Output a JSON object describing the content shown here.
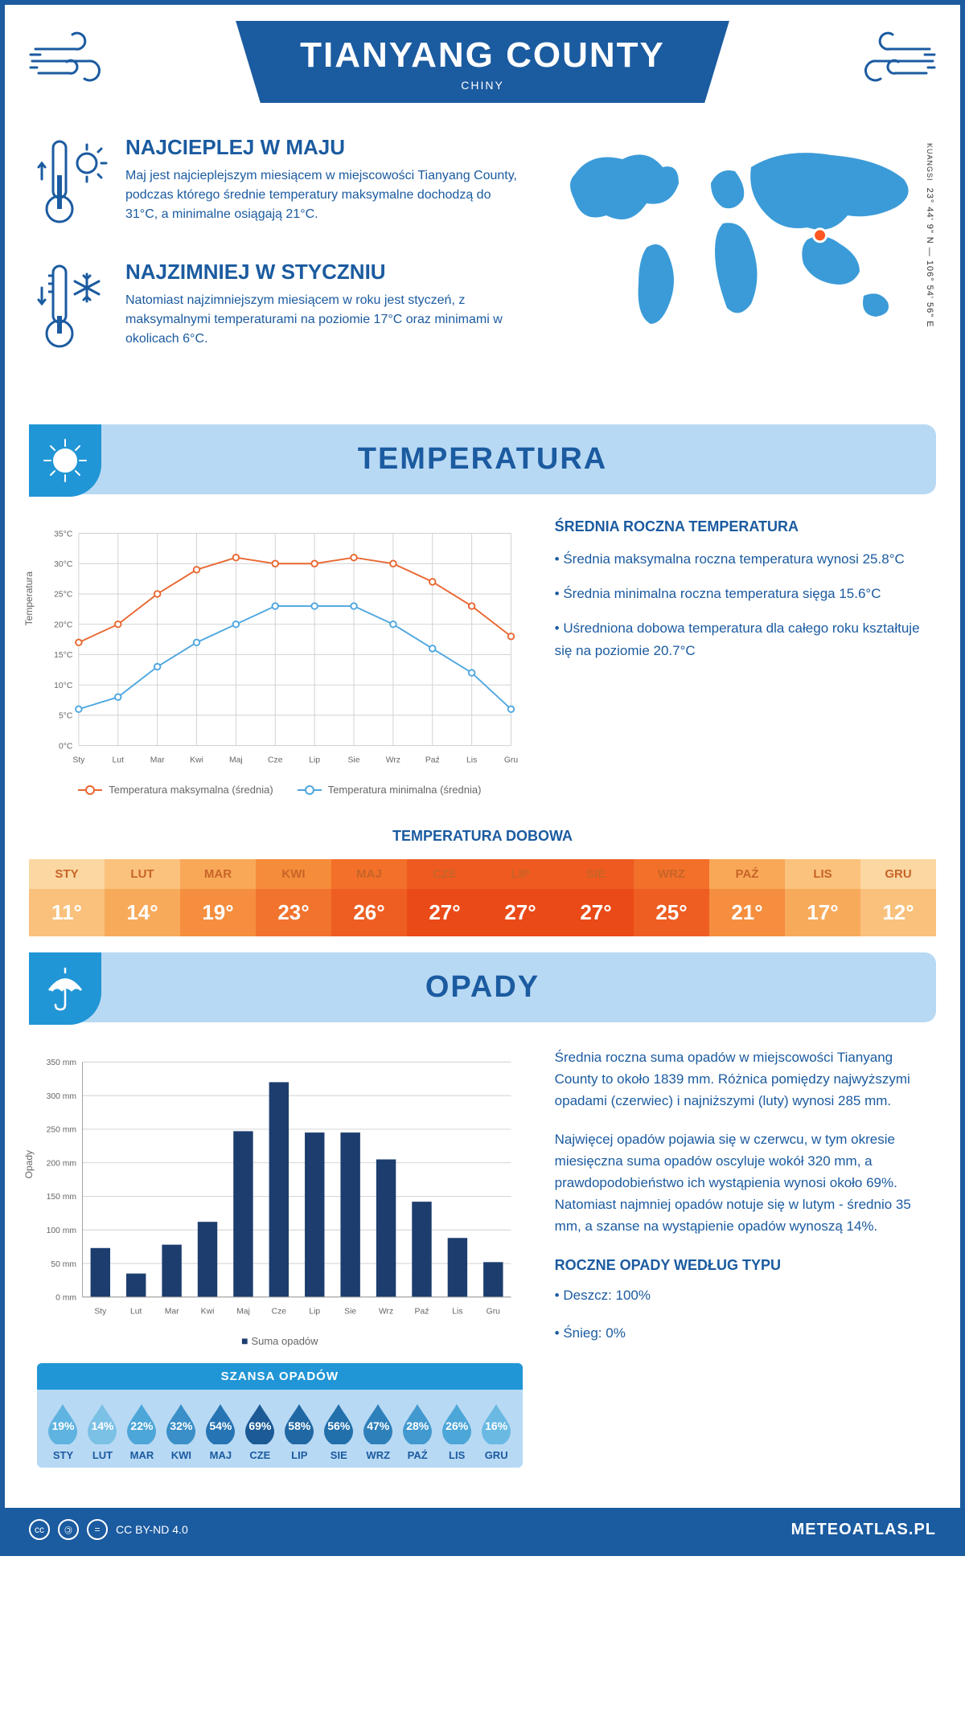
{
  "header": {
    "title": "TIANYANG COUNTY",
    "subtitle": "CHINY"
  },
  "coords": {
    "label": "KUANGSI",
    "value": "23° 44' 9\" N — 106° 54' 56\" E"
  },
  "intro": {
    "warm": {
      "title": "NAJCIEPLEJ W MAJU",
      "text": "Maj jest najcieplejszym miesiącem w miejscowości Tianyang County, podczas którego średnie temperatury maksymalne dochodzą do 31°C, a minimalne osiągają 21°C."
    },
    "cold": {
      "title": "NAJZIMNIEJ W STYCZNIU",
      "text": "Natomiast najzimniejszym miesiącem w roku jest styczeń, z maksymalnymi temperaturami na poziomie 17°C oraz minimami w okolicach 6°C."
    }
  },
  "map_marker": {
    "cx_pct": 72,
    "cy_pct": 48,
    "color": "#ff5722"
  },
  "sections": {
    "temperature": "TEMPERATURA",
    "precipitation": "OPADY"
  },
  "months": [
    "Sty",
    "Lut",
    "Mar",
    "Kwi",
    "Maj",
    "Cze",
    "Lip",
    "Sie",
    "Wrz",
    "Paź",
    "Lis",
    "Gru"
  ],
  "months_upper": [
    "STY",
    "LUT",
    "MAR",
    "KWI",
    "MAJ",
    "CZE",
    "LIP",
    "SIE",
    "WRZ",
    "PAŹ",
    "LIS",
    "GRU"
  ],
  "temp_chart": {
    "type": "line",
    "ylabel": "Temperatura",
    "ylim": [
      0,
      35
    ],
    "ytick_step": 5,
    "ytick_suffix": "°C",
    "grid_color": "#d0d0d0",
    "series": {
      "max": {
        "label": "Temperatura maksymalna (średnia)",
        "color": "#e8662f",
        "values": [
          17,
          20,
          25,
          29,
          31,
          30,
          30,
          31,
          30,
          27,
          23,
          18
        ]
      },
      "min": {
        "label": "Temperatura minimalna (średnia)",
        "color": "#4da6e0",
        "values": [
          6,
          8,
          13,
          17,
          20,
          23,
          23,
          23,
          20,
          16,
          12,
          6
        ]
      }
    },
    "label_fontsize": 11,
    "marker": "circle",
    "line_width": 2
  },
  "temp_info": {
    "title": "ŚREDNIA ROCZNA TEMPERATURA",
    "bullets": [
      "• Średnia maksymalna roczna temperatura wynosi 25.8°C",
      "• Średnia minimalna roczna temperatura sięga 15.6°C",
      "• Uśredniona dobowa temperatura dla całego roku kształtuje się na poziomie 20.7°C"
    ]
  },
  "daily_temp": {
    "title": "TEMPERATURA DOBOWA",
    "values": [
      11,
      14,
      19,
      23,
      26,
      27,
      27,
      27,
      25,
      21,
      17,
      12
    ],
    "colors_header": [
      "#fbd7a2",
      "#fbc27d",
      "#f9a858",
      "#f58c3a",
      "#f27029",
      "#ee5a1f",
      "#ee5a1f",
      "#ee5a1f",
      "#f27029",
      "#f9a858",
      "#fbc27d",
      "#fbd7a2"
    ],
    "colors_value": [
      "#f9c17c",
      "#f8aa5b",
      "#f58e3e",
      "#f1732d",
      "#ee5e22",
      "#ea4a18",
      "#ea4a18",
      "#ea4a18",
      "#ee5e22",
      "#f58e3e",
      "#f8aa5b",
      "#f9c17c"
    ],
    "header_text_color": "#c86428",
    "value_suffix": "°"
  },
  "precip_chart": {
    "type": "bar",
    "ylabel": "Opady",
    "ylim": [
      0,
      350
    ],
    "ytick_step": 50,
    "ytick_suffix": " mm",
    "grid_color": "#d0d0d0",
    "bar_color": "#1c3d6e",
    "values": [
      73,
      35,
      78,
      112,
      247,
      320,
      245,
      245,
      205,
      142,
      88,
      52
    ],
    "legend": "Suma opadów",
    "bar_width": 0.55
  },
  "precip_info": {
    "p1": "Średnia roczna suma opadów w miejscowości Tianyang County to około 1839 mm. Różnica pomiędzy najwyższymi opadami (czerwiec) i najniższymi (luty) wynosi 285 mm.",
    "p2": "Najwięcej opadów pojawia się w czerwcu, w tym okresie miesięczna suma opadów oscyluje wokół 320 mm, a prawdopodobieństwo ich wystąpienia wynosi około 69%. Natomiast najmniej opadów notuje się w lutym - średnio 35 mm, a szanse na wystąpienie opadów wynoszą 14%.",
    "yearly_title": "ROCZNE OPADY WEDŁUG TYPU",
    "yearly": [
      "• Deszcz: 100%",
      "• Śnieg: 0%"
    ]
  },
  "chance": {
    "title": "SZANSA OPADÓW",
    "values": [
      19,
      14,
      22,
      32,
      54,
      69,
      58,
      56,
      47,
      28,
      26,
      16
    ],
    "colors": [
      "#5fb3e0",
      "#7bc0e5",
      "#4da6d8",
      "#3a8fc8",
      "#2674b3",
      "#1c5a96",
      "#2068a3",
      "#2270ab",
      "#2e80ba",
      "#4299cf",
      "#4da6d8",
      "#6ab9e2"
    ],
    "suffix": "%"
  },
  "footer": {
    "license": "CC BY-ND 4.0",
    "site": "METEOATLAS.PL"
  },
  "palette": {
    "primary": "#1b5ba0",
    "light_blue": "#b8d9f4",
    "mid_blue": "#2196d6",
    "map_fill": "#3b9bd8"
  }
}
